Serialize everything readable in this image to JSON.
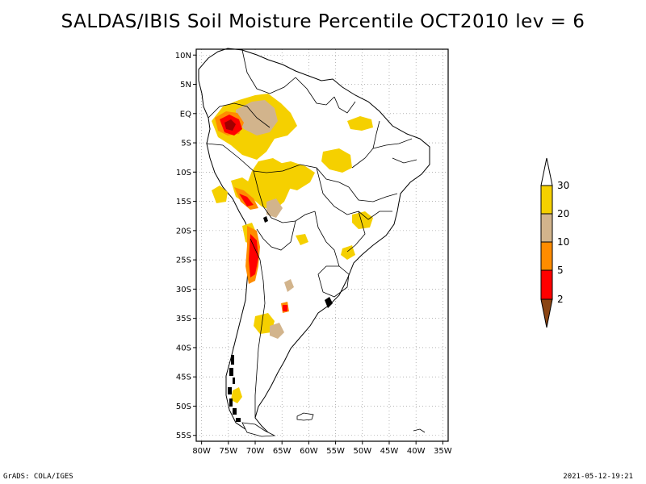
{
  "title": "SALDAS/IBIS Soil Moisture Percentile OCT2010 lev = 6",
  "map": {
    "lat_labels": [
      "10N",
      "5N",
      "EQ",
      "5S",
      "10S",
      "15S",
      "20S",
      "25S",
      "30S",
      "35S",
      "40S",
      "45S",
      "50S",
      "55S"
    ],
    "lon_labels": [
      "80W",
      "75W",
      "70W",
      "65W",
      "60W",
      "55W",
      "50W",
      "45W",
      "40W",
      "35W"
    ],
    "lat_values": [
      10,
      5,
      0,
      -5,
      -10,
      -15,
      -20,
      -25,
      -30,
      -35,
      -40,
      -45,
      -50,
      -55
    ],
    "lon_values": [
      -80,
      -75,
      -70,
      -65,
      -60,
      -55,
      -50,
      -45,
      -40,
      -35
    ],
    "lat_range": [
      -56,
      11
    ],
    "lon_range": [
      -81,
      -34
    ],
    "gridlines": true
  },
  "legend": {
    "labels": [
      "30",
      "20",
      "10",
      "5",
      "2"
    ],
    "colors": {
      "above_30": "#ffffff",
      "c20_30": "#f5d000",
      "c10_20": "#d2b48c",
      "c5_10": "#ff8c00",
      "c2_5": "#ff0000",
      "below_2": "#8b4513",
      "dark_red": "#a00000"
    }
  },
  "footer": {
    "left": "GrADS: COLA/IGES",
    "right": "2021-05-12-19:21"
  }
}
